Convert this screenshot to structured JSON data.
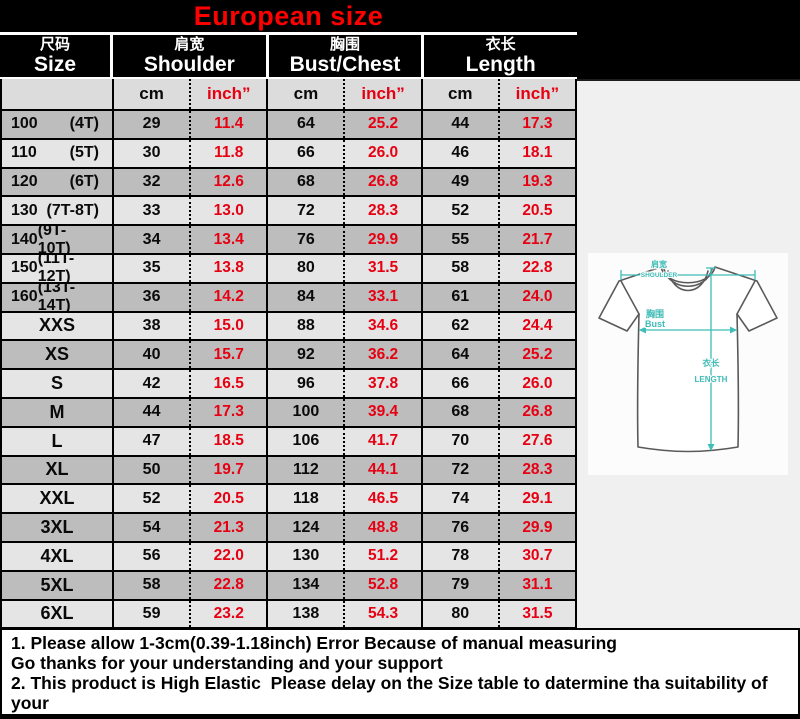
{
  "title": "European size",
  "colors": {
    "title_red": "#ff0000",
    "value_red": "#e60012",
    "header_bg": "#000000",
    "row_dark": "#bdbdbd",
    "row_light": "#e5e5e5",
    "panel_bg": "#f0f0f0",
    "diagram_accent": "#3fbdb8"
  },
  "table": {
    "columns": [
      {
        "zh": "尺码",
        "en": "Size"
      },
      {
        "zh": "肩宽",
        "en": "Shoulder"
      },
      {
        "zh": "胸围",
        "en": "Bust/Chest"
      },
      {
        "zh": "衣长",
        "en": "Length"
      }
    ],
    "unit_cm": "cm",
    "unit_inch": "inch”",
    "rows": [
      {
        "size": "100",
        "size_note": "(4T)",
        "shoulder_cm": "29",
        "shoulder_in": "11.4",
        "bust_cm": "64",
        "bust_in": "25.2",
        "length_cm": "44",
        "length_in": "17.3"
      },
      {
        "size": "110",
        "size_note": "(5T)",
        "shoulder_cm": "30",
        "shoulder_in": "11.8",
        "bust_cm": "66",
        "bust_in": "26.0",
        "length_cm": "46",
        "length_in": "18.1"
      },
      {
        "size": "120",
        "size_note": "(6T)",
        "shoulder_cm": "32",
        "shoulder_in": "12.6",
        "bust_cm": "68",
        "bust_in": "26.8",
        "length_cm": "49",
        "length_in": "19.3"
      },
      {
        "size": "130",
        "size_note": "(7T-8T)",
        "shoulder_cm": "33",
        "shoulder_in": "13.0",
        "bust_cm": "72",
        "bust_in": "28.3",
        "length_cm": "52",
        "length_in": "20.5"
      },
      {
        "size": "140",
        "size_note": "(9T-10T)",
        "shoulder_cm": "34",
        "shoulder_in": "13.4",
        "bust_cm": "76",
        "bust_in": "29.9",
        "length_cm": "55",
        "length_in": "21.7"
      },
      {
        "size": "150",
        "size_note": "(11T-12T)",
        "shoulder_cm": "35",
        "shoulder_in": "13.8",
        "bust_cm": "80",
        "bust_in": "31.5",
        "length_cm": "58",
        "length_in": "22.8"
      },
      {
        "size": "160",
        "size_note": "(13T-14T)",
        "shoulder_cm": "36",
        "shoulder_in": "14.2",
        "bust_cm": "84",
        "bust_in": "33.1",
        "length_cm": "61",
        "length_in": "24.0"
      },
      {
        "size": "XXS",
        "size_note": "",
        "shoulder_cm": "38",
        "shoulder_in": "15.0",
        "bust_cm": "88",
        "bust_in": "34.6",
        "length_cm": "62",
        "length_in": "24.4"
      },
      {
        "size": "XS",
        "size_note": "",
        "shoulder_cm": "40",
        "shoulder_in": "15.7",
        "bust_cm": "92",
        "bust_in": "36.2",
        "length_cm": "64",
        "length_in": "25.2"
      },
      {
        "size": "S",
        "size_note": "",
        "shoulder_cm": "42",
        "shoulder_in": "16.5",
        "bust_cm": "96",
        "bust_in": "37.8",
        "length_cm": "66",
        "length_in": "26.0"
      },
      {
        "size": "M",
        "size_note": "",
        "shoulder_cm": "44",
        "shoulder_in": "17.3",
        "bust_cm": "100",
        "bust_in": "39.4",
        "length_cm": "68",
        "length_in": "26.8"
      },
      {
        "size": "L",
        "size_note": "",
        "shoulder_cm": "47",
        "shoulder_in": "18.5",
        "bust_cm": "106",
        "bust_in": "41.7",
        "length_cm": "70",
        "length_in": "27.6"
      },
      {
        "size": "XL",
        "size_note": "",
        "shoulder_cm": "50",
        "shoulder_in": "19.7",
        "bust_cm": "112",
        "bust_in": "44.1",
        "length_cm": "72",
        "length_in": "28.3"
      },
      {
        "size": "XXL",
        "size_note": "",
        "shoulder_cm": "52",
        "shoulder_in": "20.5",
        "bust_cm": "118",
        "bust_in": "46.5",
        "length_cm": "74",
        "length_in": "29.1"
      },
      {
        "size": "3XL",
        "size_note": "",
        "shoulder_cm": "54",
        "shoulder_in": "21.3",
        "bust_cm": "124",
        "bust_in": "48.8",
        "length_cm": "76",
        "length_in": "29.9"
      },
      {
        "size": "4XL",
        "size_note": "",
        "shoulder_cm": "56",
        "shoulder_in": "22.0",
        "bust_cm": "130",
        "bust_in": "51.2",
        "length_cm": "78",
        "length_in": "30.7"
      },
      {
        "size": "5XL",
        "size_note": "",
        "shoulder_cm": "58",
        "shoulder_in": "22.8",
        "bust_cm": "134",
        "bust_in": "52.8",
        "length_cm": "79",
        "length_in": "31.1"
      },
      {
        "size": "6XL",
        "size_note": "",
        "shoulder_cm": "59",
        "shoulder_in": "23.2",
        "bust_cm": "138",
        "bust_in": "54.3",
        "length_cm": "80",
        "length_in": "31.5"
      }
    ]
  },
  "diagram": {
    "shoulder_zh": "肩宽",
    "shoulder_en": "SHOULDER",
    "bust_zh": "胸围",
    "bust_en": "Bust",
    "length_zh": "衣长",
    "length_en": "LENGTH"
  },
  "notes": [
    "1. Please allow 1-3cm(0.39-1.18inch) Error Because of manual measuring",
    "Go thanks for your understanding and your support",
    "2. This product is High Elastic  Please delay on the Size table to datermine tha suitability of your"
  ]
}
